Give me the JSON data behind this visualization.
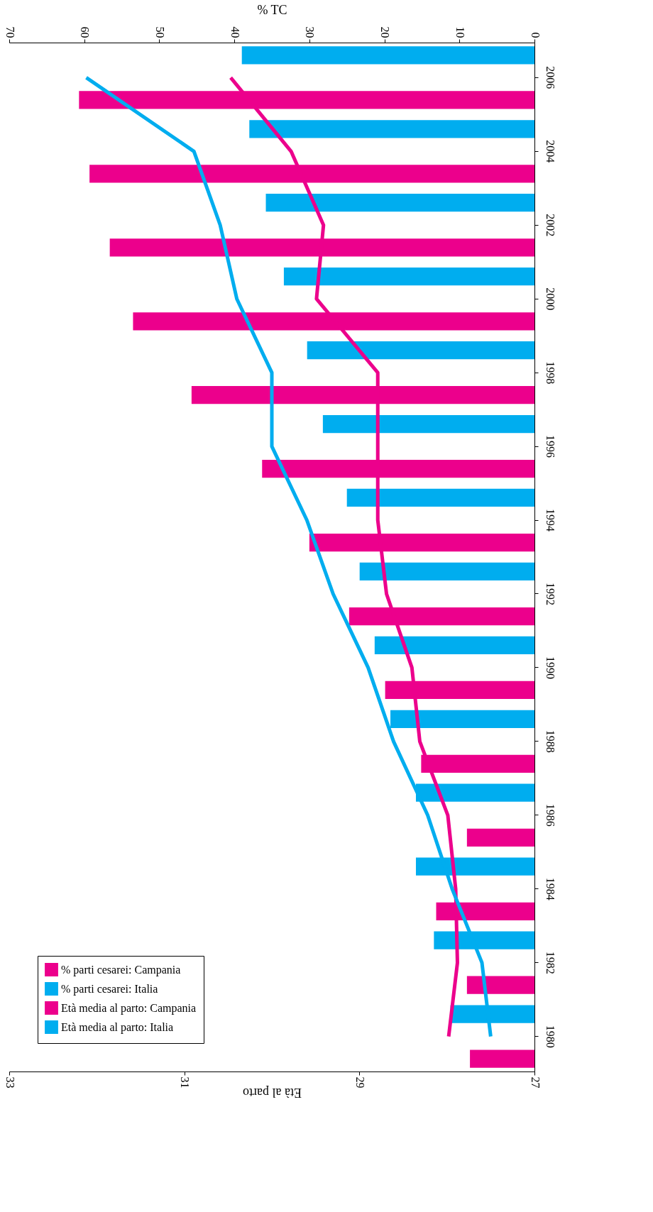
{
  "chart_data": {
    "type": "bar",
    "orientation": "horizontal",
    "categories": [
      "2006",
      "2004",
      "2002",
      "2000",
      "1998",
      "1996",
      "1994",
      "1992",
      "1990",
      "1988",
      "1986",
      "1984",
      "1982",
      "1980"
    ],
    "series": [
      {
        "name": "% parti cesarei: Campania",
        "color": "#ec008c",
        "values": [
          60.7,
          59.3,
          56.6,
          53.5,
          45.7,
          36.3,
          30.0,
          24.7,
          19.9,
          15.1,
          9.0,
          13.1,
          9.0,
          8.6
        ]
      },
      {
        "name": "% parti cesarei: Italia",
        "color": "#00adef",
        "values": [
          39.0,
          38.0,
          35.8,
          33.4,
          30.3,
          28.2,
          25.0,
          23.3,
          21.3,
          19.2,
          15.8,
          15.8,
          13.4,
          11.2
        ]
      },
      {
        "name": "Età media al parto: Campania",
        "type": "line",
        "axis": "x2",
        "color": "#ec008c",
        "values": [
          30.47,
          29.78,
          29.41,
          29.49,
          28.79,
          28.79,
          28.79,
          28.69,
          28.4,
          28.31,
          27.99,
          27.9,
          27.88,
          27.98
        ]
      },
      {
        "name": "Età media al parto: Italia",
        "type": "line",
        "axis": "x2",
        "color": "#00adef",
        "values": [
          32.12,
          30.89,
          30.59,
          30.4,
          30.0,
          30.0,
          29.6,
          29.3,
          28.9,
          28.61,
          28.22,
          27.94,
          27.6,
          27.5
        ]
      }
    ],
    "xlabel": "% TC",
    "xlim": [
      70,
      0
    ],
    "xticks": [
      0,
      10,
      20,
      30,
      40,
      50,
      60,
      70
    ],
    "x2label": "Età al parto",
    "x2lim": [
      33,
      27
    ],
    "x2ticks": [
      27,
      29,
      31,
      33
    ],
    "grid": false,
    "legend": "bottom left",
    "marker": "none",
    "line_style": "solid"
  }
}
